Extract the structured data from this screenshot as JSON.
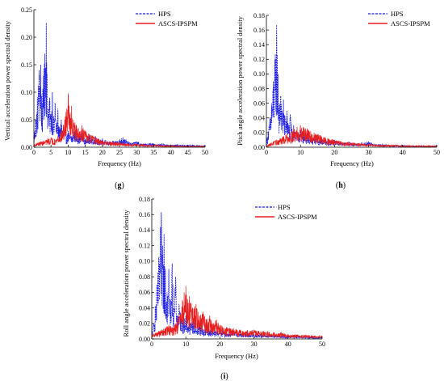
{
  "chart_data": [
    {
      "id": "g",
      "type": "line",
      "panel_label": "g",
      "xlabel": "Frequency (Hz)",
      "ylabel": "Vertical acceleration power spectral density",
      "xlim": [
        0,
        50
      ],
      "ylim": [
        0,
        0.25
      ],
      "xticks": [
        0,
        5,
        10,
        15,
        20,
        25,
        30,
        35,
        40,
        45,
        50
      ],
      "yticks": [
        0.0,
        0.05,
        0.1,
        0.15,
        0.2,
        0.25
      ],
      "ytick_labels": [
        "0.00",
        "0.05",
        "0.10",
        "0.15",
        "0.20",
        "0.25"
      ],
      "grid": false,
      "legend_position": "top-right",
      "series": [
        {
          "name": "HPS",
          "color": "#1a1ae6",
          "style": "dashed",
          "x": [
            0,
            0.5,
            1.0,
            1.5,
            2.0,
            2.4,
            2.8,
            3.2,
            3.6,
            3.9,
            4.2,
            4.6,
            5.0,
            5.4,
            5.8,
            6.2,
            6.6,
            7.0,
            7.5,
            8.0,
            8.5,
            9.0,
            9.5,
            10.0,
            11,
            12,
            13,
            14,
            15,
            16,
            17,
            18,
            19,
            20,
            22,
            24,
            26,
            28,
            30,
            32,
            34,
            36,
            38,
            40,
            42,
            44,
            46,
            48,
            50
          ],
          "y": [
            0.02,
            0.05,
            0.09,
            0.14,
            0.15,
            0.08,
            0.13,
            0.17,
            0.226,
            0.12,
            0.07,
            0.09,
            0.06,
            0.1,
            0.05,
            0.08,
            0.04,
            0.07,
            0.03,
            0.05,
            0.03,
            0.04,
            0.02,
            0.03,
            0.02,
            0.035,
            0.02,
            0.03,
            0.015,
            0.025,
            0.015,
            0.02,
            0.012,
            0.015,
            0.01,
            0.012,
            0.018,
            0.008,
            0.01,
            0.006,
            0.008,
            0.005,
            0.006,
            0.004,
            0.005,
            0.004,
            0.004,
            0.003,
            0.003
          ]
        },
        {
          "name": "ASCS-IPSPM",
          "color": "#e61e1e",
          "style": "solid",
          "x": [
            0,
            1,
            2,
            3,
            4,
            5,
            6,
            7,
            8,
            9,
            9.5,
            10,
            10.5,
            11,
            11.5,
            12,
            13,
            14,
            15,
            16,
            17,
            18,
            19,
            20,
            22,
            24,
            26,
            28,
            30,
            32,
            34,
            36,
            38,
            40,
            42,
            44,
            46,
            48,
            50
          ],
          "y": [
            0.005,
            0.008,
            0.01,
            0.012,
            0.015,
            0.018,
            0.015,
            0.02,
            0.03,
            0.05,
            0.07,
            0.098,
            0.06,
            0.075,
            0.05,
            0.045,
            0.035,
            0.04,
            0.03,
            0.025,
            0.022,
            0.018,
            0.015,
            0.012,
            0.01,
            0.009,
            0.008,
            0.006,
            0.006,
            0.005,
            0.004,
            0.004,
            0.003,
            0.003,
            0.003,
            0.002,
            0.002,
            0.002,
            0.002
          ]
        }
      ]
    },
    {
      "id": "h",
      "type": "line",
      "panel_label": "h",
      "xlabel": "Frequency (Hz)",
      "ylabel": "Pitch angle acceleration power spectral density",
      "xlim": [
        0,
        50
      ],
      "ylim": [
        0,
        0.18
      ],
      "xticks": [
        0,
        10,
        20,
        30,
        40,
        50
      ],
      "yticks": [
        0.0,
        0.02,
        0.04,
        0.06,
        0.08,
        0.1,
        0.12,
        0.14,
        0.16,
        0.18
      ],
      "ytick_labels": [
        "0.00",
        "0.02",
        "0.04",
        "0.06",
        "0.08",
        "0.10",
        "0.12",
        "0.14",
        "0.16",
        "0.18"
      ],
      "grid": false,
      "legend_position": "top-right",
      "series": [
        {
          "name": "HPS",
          "color": "#1a1ae6",
          "style": "dashed",
          "x": [
            0,
            0.5,
            1.0,
            1.5,
            2.0,
            2.5,
            3.0,
            3.4,
            3.8,
            4.2,
            4.6,
            5.0,
            5.5,
            6.0,
            6.5,
            7.0,
            7.5,
            8.0,
            9,
            10,
            11,
            12,
            13,
            14,
            15,
            16,
            18,
            20,
            22,
            24,
            26,
            28,
            30,
            32,
            34,
            36,
            38,
            40,
            42,
            44,
            46,
            48,
            50
          ],
          "y": [
            0.01,
            0.02,
            0.04,
            0.06,
            0.09,
            0.12,
            0.167,
            0.1,
            0.06,
            0.07,
            0.05,
            0.065,
            0.04,
            0.05,
            0.03,
            0.045,
            0.025,
            0.03,
            0.02,
            0.025,
            0.015,
            0.02,
            0.012,
            0.015,
            0.01,
            0.012,
            0.008,
            0.01,
            0.006,
            0.007,
            0.005,
            0.006,
            0.008,
            0.004,
            0.004,
            0.003,
            0.003,
            0.003,
            0.002,
            0.002,
            0.002,
            0.002,
            0.002
          ]
        },
        {
          "name": "ASCS-IPSPM",
          "color": "#e61e1e",
          "style": "solid",
          "x": [
            0,
            1,
            2,
            3,
            4,
            5,
            6,
            7,
            8,
            9,
            10,
            11,
            12,
            13,
            14,
            15,
            16,
            18,
            20,
            22,
            24,
            26,
            28,
            30,
            32,
            34,
            36,
            38,
            40,
            42,
            44,
            46,
            48,
            50
          ],
          "y": [
            0.003,
            0.005,
            0.008,
            0.01,
            0.012,
            0.015,
            0.018,
            0.02,
            0.025,
            0.028,
            0.03,
            0.027,
            0.025,
            0.022,
            0.02,
            0.018,
            0.016,
            0.012,
            0.01,
            0.008,
            0.007,
            0.006,
            0.005,
            0.005,
            0.004,
            0.003,
            0.003,
            0.003,
            0.002,
            0.002,
            0.002,
            0.002,
            0.002,
            0.002
          ]
        }
      ]
    },
    {
      "id": "i",
      "type": "line",
      "panel_label": "i",
      "xlabel": "Frequency (Hz)",
      "ylabel": "Roll angle acceleration power spectral density",
      "xlim": [
        0,
        50
      ],
      "ylim": [
        0,
        0.18
      ],
      "xticks": [
        0,
        10,
        20,
        30,
        40,
        50
      ],
      "yticks": [
        0.0,
        0.02,
        0.04,
        0.06,
        0.08,
        0.1,
        0.12,
        0.14,
        0.16,
        0.18
      ],
      "ytick_labels": [
        "0.00",
        "0.02",
        "0.04",
        "0.06",
        "0.08",
        "0.10",
        "0.12",
        "0.14",
        "0.16",
        "0.18"
      ],
      "grid": false,
      "legend_position": "top-right",
      "series": [
        {
          "name": "HPS",
          "color": "#1a1ae6",
          "style": "dashed",
          "x": [
            0,
            0.5,
            1.0,
            1.5,
            2.0,
            2.5,
            2.8,
            3.2,
            3.6,
            4.0,
            4.5,
            5.0,
            5.5,
            6.0,
            6.5,
            7.0,
            7.5,
            8.0,
            9,
            10,
            11,
            12,
            13,
            14,
            15,
            16,
            18,
            20,
            22,
            24,
            26,
            28,
            30,
            32,
            34,
            36,
            38,
            40,
            42,
            44,
            46,
            48,
            50
          ],
          "y": [
            0.01,
            0.02,
            0.04,
            0.07,
            0.1,
            0.14,
            0.163,
            0.12,
            0.135,
            0.09,
            0.06,
            0.09,
            0.05,
            0.097,
            0.04,
            0.08,
            0.03,
            0.045,
            0.025,
            0.03,
            0.02,
            0.025,
            0.015,
            0.02,
            0.012,
            0.015,
            0.01,
            0.012,
            0.008,
            0.01,
            0.007,
            0.008,
            0.006,
            0.006,
            0.005,
            0.005,
            0.004,
            0.004,
            0.003,
            0.003,
            0.003,
            0.002,
            0.002
          ]
        },
        {
          "name": "ASCS-IPSPM",
          "color": "#e61e1e",
          "style": "solid",
          "x": [
            0,
            1,
            2,
            3,
            4,
            5,
            6,
            7,
            8,
            9,
            9.5,
            10,
            10.5,
            11,
            12,
            13,
            14,
            15,
            16,
            17,
            18,
            19,
            20,
            22,
            24,
            26,
            28,
            30,
            32,
            34,
            36,
            38,
            40,
            42,
            44,
            46,
            48,
            50
          ],
          "y": [
            0.005,
            0.008,
            0.01,
            0.012,
            0.015,
            0.018,
            0.015,
            0.02,
            0.03,
            0.05,
            0.06,
            0.068,
            0.05,
            0.055,
            0.04,
            0.045,
            0.03,
            0.035,
            0.025,
            0.03,
            0.02,
            0.025,
            0.018,
            0.015,
            0.013,
            0.012,
            0.011,
            0.012,
            0.01,
            0.01,
            0.008,
            0.008,
            0.006,
            0.006,
            0.005,
            0.005,
            0.004,
            0.004
          ]
        }
      ]
    }
  ]
}
